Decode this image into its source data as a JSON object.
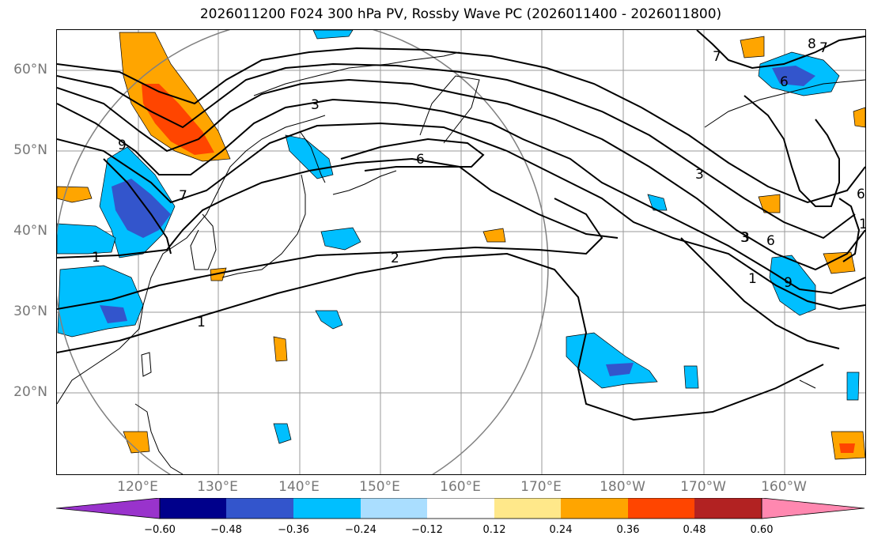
{
  "title": "2026011200 F024 300 hPa PV, Rossby Wave PC (2026011400 - 2026011800)",
  "lat_labels": [
    "60°N",
    "50°N",
    "40°N",
    "30°N",
    "20°N"
  ],
  "lon_labels": [
    "120°E",
    "130°E",
    "140°E",
    "150°E",
    "160°E",
    "170°E",
    "180°W",
    "170°W",
    "160°W"
  ],
  "contour_labels": [
    "3",
    "6",
    "9",
    "1",
    "2",
    "1",
    "3",
    "6",
    "1",
    "3",
    "6",
    "7",
    "8",
    "6",
    "7",
    "1",
    "9",
    "3",
    "7"
  ],
  "colorbar": {
    "ticks": [
      "−0.60",
      "−0.48",
      "−0.36",
      "−0.24",
      "−0.12",
      "0.12",
      "0.24",
      "0.36",
      "0.48",
      "0.60"
    ],
    "colors": [
      "#9933cc",
      "#00008b",
      "#3355cc",
      "#00bfff",
      "#aadeff",
      "#ffffff",
      "#ffe88a",
      "#ffa500",
      "#ff4500",
      "#b22222",
      "#ff88b0"
    ]
  }
}
